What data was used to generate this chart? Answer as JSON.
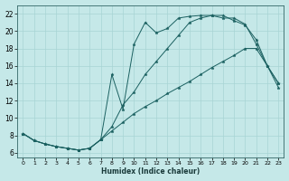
{
  "xlabel": "Humidex (Indice chaleur)",
  "background_color": "#c5e8e8",
  "grid_color": "#a8d4d4",
  "line_color": "#1a6060",
  "spine_color": "#336666",
  "xlim": [
    -0.5,
    23.5
  ],
  "ylim": [
    5.5,
    23.0
  ],
  "xticks": [
    0,
    1,
    2,
    3,
    4,
    5,
    6,
    7,
    8,
    9,
    10,
    11,
    12,
    13,
    14,
    15,
    16,
    17,
    18,
    19,
    20,
    21,
    22,
    23
  ],
  "yticks": [
    6,
    8,
    10,
    12,
    14,
    16,
    18,
    20,
    22
  ],
  "line1_x": [
    0,
    1,
    2,
    3,
    4,
    5,
    6,
    7,
    8,
    9,
    10,
    11,
    12,
    13,
    14,
    15,
    16,
    17,
    18,
    19,
    20,
    21,
    22,
    23
  ],
  "line1_y": [
    8.2,
    7.4,
    7.0,
    6.7,
    6.5,
    6.3,
    6.5,
    7.5,
    9.0,
    11.5,
    13.0,
    15.0,
    16.5,
    18.0,
    19.5,
    21.0,
    21.5,
    21.8,
    21.8,
    21.2,
    20.7,
    19.0,
    16.0,
    14.0
  ],
  "line2_x": [
    0,
    1,
    2,
    3,
    4,
    5,
    6,
    7,
    8,
    9,
    10,
    11,
    12,
    13,
    14,
    15,
    16,
    17,
    18,
    19,
    20,
    21,
    22,
    23
  ],
  "line2_y": [
    8.2,
    7.4,
    7.0,
    6.7,
    6.5,
    6.3,
    6.5,
    7.5,
    15.0,
    11.0,
    18.5,
    21.0,
    19.8,
    20.3,
    21.5,
    21.7,
    21.8,
    21.8,
    21.5,
    21.5,
    20.8,
    18.5,
    16.0,
    13.5
  ],
  "line3_x": [
    0,
    1,
    2,
    3,
    4,
    5,
    6,
    7,
    8,
    9,
    10,
    11,
    12,
    13,
    14,
    15,
    16,
    17,
    18,
    19,
    20,
    21,
    22,
    23
  ],
  "line3_y": [
    8.2,
    7.4,
    7.0,
    6.7,
    6.5,
    6.3,
    6.5,
    7.5,
    8.5,
    9.5,
    10.5,
    11.3,
    12.0,
    12.8,
    13.5,
    14.2,
    15.0,
    15.8,
    16.5,
    17.2,
    18.0,
    18.0,
    16.0,
    14.0
  ]
}
